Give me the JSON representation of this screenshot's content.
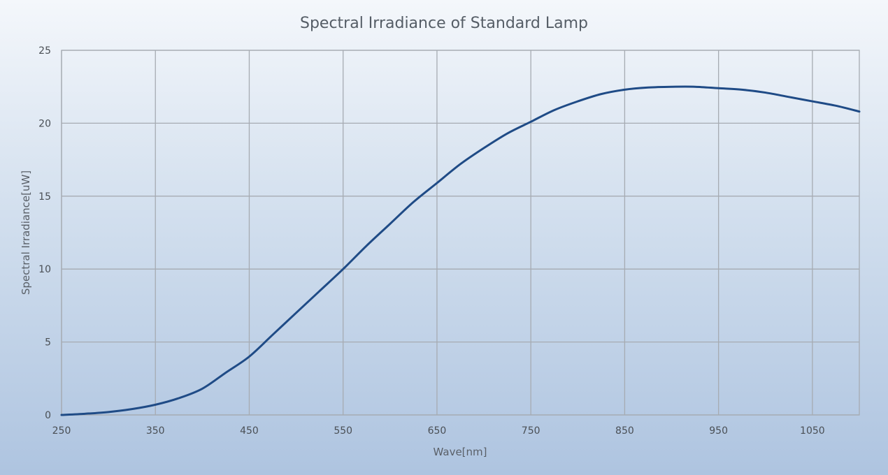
{
  "chart_data": {
    "type": "line",
    "title": "Spectral Irradiance of Standard Lamp",
    "xlabel": "Wave[nm]",
    "ylabel": "Spectral Irradiance[uW]",
    "xlim": [
      250,
      1100
    ],
    "ylim": [
      0,
      25
    ],
    "x_ticks": [
      250,
      350,
      450,
      550,
      650,
      750,
      850,
      950,
      1050
    ],
    "y_ticks": [
      0,
      5,
      10,
      15,
      20,
      25
    ],
    "grid": true,
    "legend": "none",
    "line_color": "#1f4b86",
    "series": [
      {
        "x": [
          250,
          275,
          300,
          325,
          350,
          375,
          400,
          425,
          450,
          475,
          500,
          525,
          550,
          575,
          600,
          625,
          650,
          675,
          700,
          725,
          750,
          775,
          800,
          825,
          850,
          875,
          900,
          925,
          950,
          975,
          1000,
          1025,
          1050,
          1075,
          1100
        ],
        "y": [
          0.0,
          0.08,
          0.2,
          0.4,
          0.7,
          1.15,
          1.8,
          2.9,
          4.0,
          5.5,
          7.0,
          8.5,
          10.0,
          11.6,
          13.1,
          14.6,
          15.9,
          17.2,
          18.3,
          19.3,
          20.1,
          20.9,
          21.5,
          22.0,
          22.3,
          22.45,
          22.5,
          22.5,
          22.4,
          22.3,
          22.1,
          21.8,
          21.5,
          21.2,
          20.8
        ]
      }
    ]
  }
}
